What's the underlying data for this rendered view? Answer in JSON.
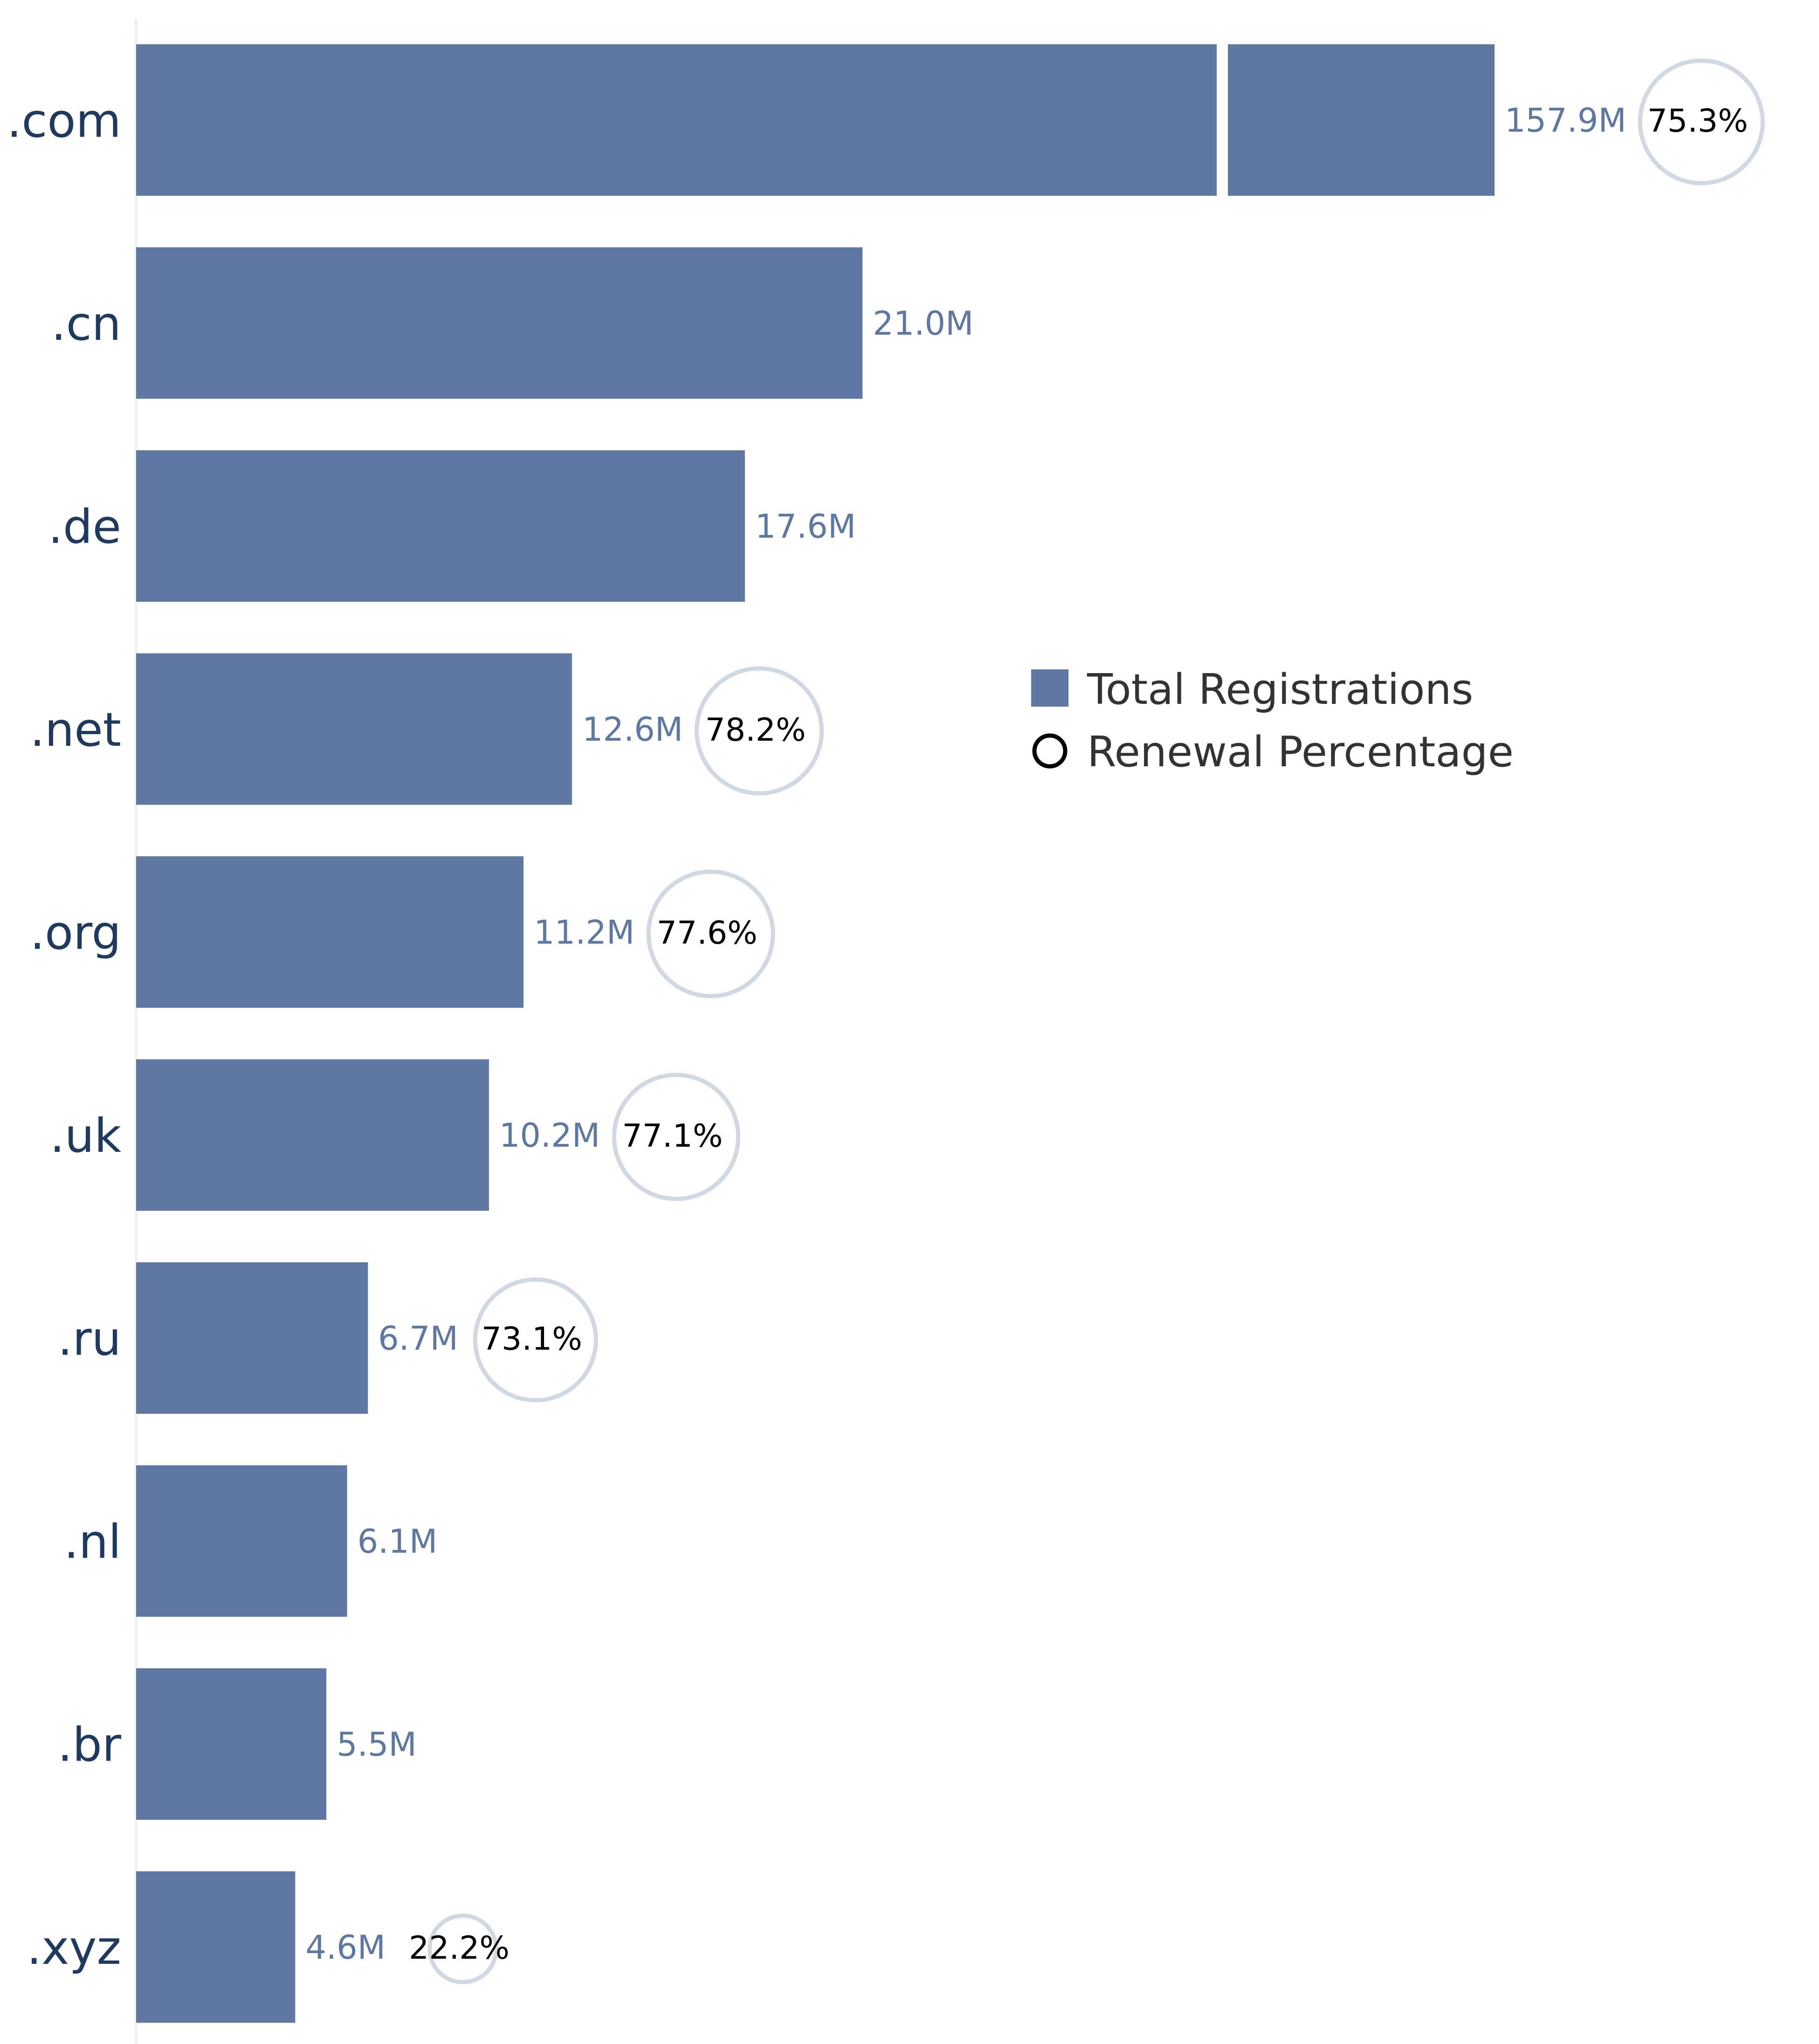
{
  "colors": {
    "bar": "#5e77a3",
    "value_label": "#5e78a4",
    "category_label": "#1f3a60",
    "circle_stroke": "#d0d8e2",
    "axis_line": "#eeeeee",
    "legend_circle": "#000000"
  },
  "legend": {
    "bar_label": "Total Registrations",
    "circle_label": "Renewal Percentage"
  },
  "chart_data": {
    "type": "bar",
    "orientation": "horizontal",
    "categories": [
      ".com",
      ".cn",
      ".de",
      ".net",
      ".org",
      ".uk",
      ".ru",
      ".nl",
      ".br",
      ".xyz"
    ],
    "series": [
      {
        "name": "Total Registrations",
        "values": [
          157.9,
          21.0,
          17.6,
          12.6,
          11.2,
          10.2,
          6.7,
          6.1,
          5.5,
          4.6
        ],
        "labels": [
          "157.9M",
          "21.0M",
          "17.6M",
          "12.6M",
          "11.2M",
          "10.2M",
          "6.7M",
          "6.1M",
          "5.5M",
          "4.6M"
        ]
      },
      {
        "name": "Renewal Percentage",
        "values": [
          75.3,
          null,
          null,
          78.2,
          77.6,
          77.1,
          73.1,
          null,
          null,
          22.2
        ],
        "labels": [
          "75.3%",
          "",
          "",
          "78.2%",
          "77.6%",
          "77.1%",
          "73.1%",
          "",
          "",
          "22.2%"
        ]
      }
    ],
    "axis_break": true,
    "legend_position": "right",
    "grid": false
  }
}
